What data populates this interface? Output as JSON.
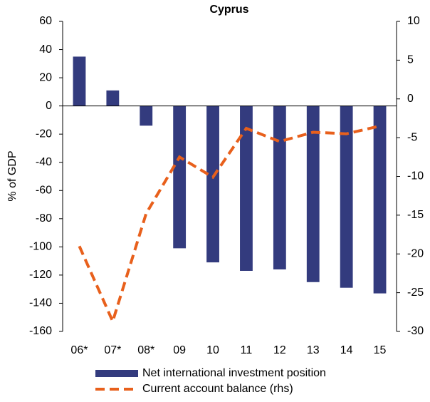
{
  "chart_data": {
    "type": "bar-line",
    "title": "Cyprus",
    "y_label": "% of GDP",
    "categories": [
      "06*",
      "07*",
      "08*",
      "09",
      "10",
      "11",
      "12",
      "13",
      "14",
      "15"
    ],
    "series": [
      {
        "name": "Net international investment position",
        "type": "bar",
        "color": "#333b7e",
        "values": [
          35,
          11,
          -14,
          -101,
          -111,
          -117,
          -116,
          -125,
          -129,
          -133
        ]
      },
      {
        "name": "Current account balance (rhs)",
        "type": "line",
        "axis": "y2",
        "color": "#e8601c",
        "values": [
          -19,
          -28.7,
          -14.8,
          -7.5,
          -10.1,
          -3.8,
          -5.5,
          -4.3,
          -4.5,
          -3.5
        ]
      }
    ],
    "ylim": [
      -160,
      60
    ],
    "yticks": [
      -160,
      -140,
      -120,
      -100,
      -80,
      -60,
      -40,
      -20,
      0,
      20,
      40,
      60
    ],
    "y2lim": [
      -30,
      10
    ],
    "y2ticks": [
      -30,
      -25,
      -20,
      -15,
      -10,
      -5,
      0,
      5,
      10
    ],
    "grid": false
  }
}
